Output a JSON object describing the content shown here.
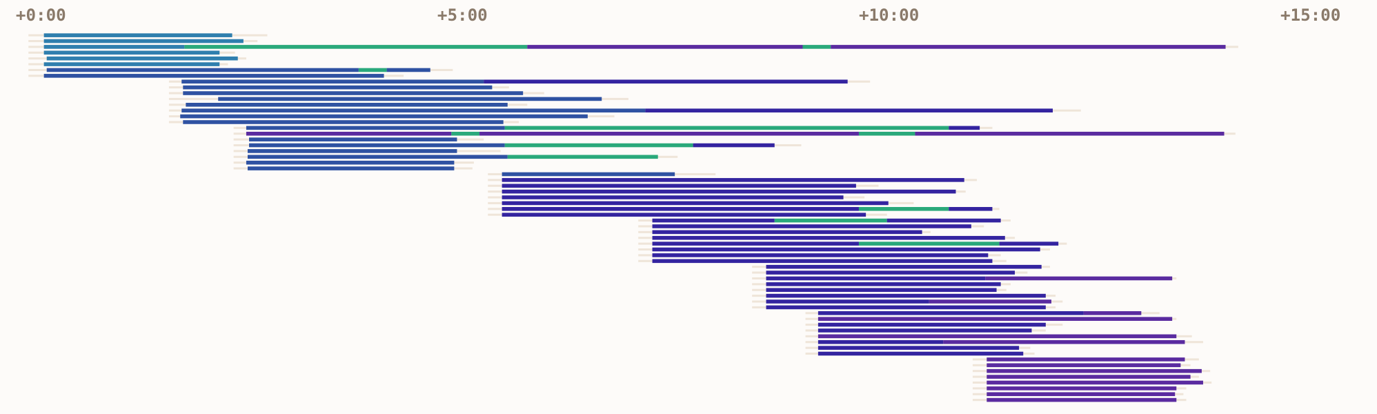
{
  "chart_data": {
    "type": "timeline",
    "xlim": [
      -11.25,
      968.75
    ],
    "xticks": [
      {
        "value": 0,
        "label": "+0:00"
      },
      {
        "value": 300,
        "label": "+5:00"
      },
      {
        "value": 600,
        "label": "+10:00"
      },
      {
        "value": 900,
        "label": "+15:00"
      }
    ],
    "colors": [
      "#2f52a2",
      "#2aa97b",
      "#5a2ba0",
      "#3424a0",
      "#2f7fae"
    ],
    "wait_color": "#efe5d9",
    "rows": [
      {
        "queue": 9,
        "done": 179,
        "segments": [
          [
            20,
            154,
            4
          ]
        ]
      },
      {
        "queue": 9,
        "done": 172,
        "segments": [
          [
            20,
            162,
            4
          ]
        ]
      },
      {
        "queue": 9,
        "done": 870,
        "segments": [
          [
            20,
            120,
            4
          ],
          [
            120,
            364,
            1
          ],
          [
            364,
            560,
            2
          ],
          [
            560,
            580,
            1
          ],
          [
            580,
            861,
            2
          ]
        ]
      },
      {
        "queue": 9,
        "done": 156,
        "segments": [
          [
            20,
            145,
            4
          ]
        ]
      },
      {
        "queue": 9,
        "done": 164,
        "segments": [
          [
            22,
            158,
            4
          ]
        ]
      },
      {
        "queue": 9,
        "done": 151,
        "segments": [
          [
            20,
            145,
            4
          ]
        ]
      },
      {
        "queue": 9,
        "done": 311,
        "segments": [
          [
            22,
            244,
            0
          ],
          [
            244,
            264,
            1
          ],
          [
            264,
            295,
            0
          ]
        ]
      },
      {
        "queue": 9,
        "done": 276,
        "segments": [
          [
            20,
            262,
            0
          ]
        ]
      },
      {
        "queue": 109,
        "done": 608,
        "segments": [
          [
            118,
            333,
            0
          ],
          [
            333,
            592,
            3
          ]
        ]
      },
      {
        "queue": 109,
        "done": 351,
        "segments": [
          [
            119,
            339,
            0
          ]
        ]
      },
      {
        "queue": 109,
        "done": 376,
        "segments": [
          [
            119,
            361,
            0
          ]
        ]
      },
      {
        "queue": 109,
        "done": 436,
        "segments": [
          [
            144,
            417,
            0
          ]
        ]
      },
      {
        "queue": 109,
        "done": 364,
        "segments": [
          [
            121,
            350,
            0
          ]
        ]
      },
      {
        "queue": 109,
        "done": 758,
        "segments": [
          [
            118,
            448,
            0
          ],
          [
            448,
            738,
            3
          ]
        ]
      },
      {
        "queue": 109,
        "done": 426,
        "segments": [
          [
            117,
            407,
            0
          ]
        ]
      },
      {
        "queue": 109,
        "done": 358,
        "segments": [
          [
            119,
            347,
            0
          ]
        ]
      },
      {
        "queue": 155,
        "done": 695,
        "segments": [
          [
            164,
            348,
            0
          ],
          [
            348,
            664,
            1
          ],
          [
            664,
            686,
            3
          ]
        ]
      },
      {
        "queue": 155,
        "done": 868,
        "segments": [
          [
            164,
            310,
            2
          ],
          [
            310,
            330,
            1
          ],
          [
            330,
            600,
            2
          ],
          [
            600,
            640,
            1
          ],
          [
            640,
            860,
            2
          ]
        ]
      },
      {
        "queue": 155,
        "done": 333,
        "segments": [
          [
            166,
            314,
            0
          ]
        ]
      },
      {
        "queue": 155,
        "done": 559,
        "segments": [
          [
            166,
            348,
            0
          ],
          [
            348,
            482,
            1
          ],
          [
            482,
            540,
            3
          ]
        ]
      },
      {
        "queue": 155,
        "done": 345,
        "segments": [
          [
            165,
            314,
            0
          ]
        ]
      },
      {
        "queue": 155,
        "done": 471,
        "segments": [
          [
            165,
            350,
            0
          ],
          [
            350,
            457,
            1
          ]
        ]
      },
      {
        "queue": 155,
        "done": 326,
        "segments": [
          [
            164,
            312,
            0
          ]
        ]
      },
      {
        "queue": 155,
        "done": 325,
        "segments": [
          [
            165,
            312,
            0
          ]
        ]
      },
      {
        "queue": 336,
        "done": 498,
        "segments": [
          [
            346,
            469,
            0
          ]
        ]
      },
      {
        "queue": 336,
        "done": 684,
        "segments": [
          [
            346,
            675,
            3
          ]
        ]
      },
      {
        "queue": 336,
        "done": 614,
        "segments": [
          [
            346,
            598,
            3
          ]
        ]
      },
      {
        "queue": 336,
        "done": 676,
        "segments": [
          [
            346,
            669,
            3
          ]
        ]
      },
      {
        "queue": 336,
        "done": 604,
        "segments": [
          [
            346,
            589,
            3
          ]
        ]
      },
      {
        "queue": 336,
        "done": 639,
        "segments": [
          [
            346,
            621,
            3
          ]
        ]
      },
      {
        "queue": 336,
        "done": 700,
        "segments": [
          [
            346,
            600,
            3
          ],
          [
            600,
            664,
            1
          ],
          [
            664,
            695,
            3
          ]
        ]
      },
      {
        "queue": 336,
        "done": 620,
        "segments": [
          [
            346,
            605,
            3
          ]
        ]
      },
      {
        "queue": 443,
        "done": 708,
        "segments": [
          [
            453,
            540,
            3
          ],
          [
            540,
            620,
            1
          ],
          [
            620,
            701,
            3
          ]
        ]
      },
      {
        "queue": 443,
        "done": 689,
        "segments": [
          [
            453,
            680,
            3
          ]
        ]
      },
      {
        "queue": 443,
        "done": 651,
        "segments": [
          [
            453,
            645,
            3
          ]
        ]
      },
      {
        "queue": 443,
        "done": 711,
        "segments": [
          [
            453,
            704,
            3
          ]
        ]
      },
      {
        "queue": 443,
        "done": 748,
        "segments": [
          [
            453,
            600,
            3
          ],
          [
            600,
            700,
            1
          ],
          [
            700,
            742,
            3
          ]
        ]
      },
      {
        "queue": 443,
        "done": 736,
        "segments": [
          [
            453,
            729,
            3
          ]
        ]
      },
      {
        "queue": 443,
        "done": 701,
        "segments": [
          [
            453,
            692,
            3
          ]
        ]
      },
      {
        "queue": 443,
        "done": 705,
        "segments": [
          [
            453,
            695,
            3
          ]
        ]
      },
      {
        "queue": 524,
        "done": 736,
        "segments": [
          [
            534,
            730,
            3
          ]
        ]
      },
      {
        "queue": 524,
        "done": 720,
        "segments": [
          [
            534,
            711,
            3
          ]
        ]
      },
      {
        "queue": 524,
        "done": 826,
        "segments": [
          [
            534,
            690,
            3
          ],
          [
            690,
            823,
            2
          ]
        ]
      },
      {
        "queue": 524,
        "done": 708,
        "segments": [
          [
            534,
            701,
            3
          ]
        ]
      },
      {
        "queue": 524,
        "done": 705,
        "segments": [
          [
            534,
            698,
            3
          ]
        ]
      },
      {
        "queue": 524,
        "done": 740,
        "segments": [
          [
            534,
            733,
            3
          ]
        ]
      },
      {
        "queue": 524,
        "done": 745,
        "segments": [
          [
            534,
            650,
            3
          ],
          [
            650,
            737,
            2
          ]
        ]
      },
      {
        "queue": 524,
        "done": 740,
        "segments": [
          [
            534,
            733,
            3
          ]
        ]
      },
      {
        "queue": 562,
        "done": 814,
        "segments": [
          [
            571,
            760,
            3
          ],
          [
            760,
            801,
            2
          ]
        ]
      },
      {
        "queue": 562,
        "done": 826,
        "segments": [
          [
            571,
            823,
            2
          ]
        ]
      },
      {
        "queue": 562,
        "done": 745,
        "segments": [
          [
            571,
            733,
            3
          ]
        ]
      },
      {
        "queue": 562,
        "done": 733,
        "segments": [
          [
            571,
            723,
            3
          ]
        ]
      },
      {
        "queue": 562,
        "done": 837,
        "segments": [
          [
            571,
            826,
            2
          ]
        ]
      },
      {
        "queue": 562,
        "done": 845,
        "segments": [
          [
            571,
            660,
            3
          ],
          [
            660,
            832,
            2
          ]
        ]
      },
      {
        "queue": 562,
        "done": 722,
        "segments": [
          [
            571,
            714,
            3
          ]
        ]
      },
      {
        "queue": 562,
        "done": 725,
        "segments": [
          [
            571,
            717,
            3
          ]
        ]
      },
      {
        "queue": 681,
        "done": 842,
        "segments": [
          [
            691,
            832,
            2
          ]
        ]
      },
      {
        "queue": 681,
        "done": 836,
        "segments": [
          [
            691,
            829,
            2
          ]
        ]
      },
      {
        "queue": 681,
        "done": 850,
        "segments": [
          [
            691,
            844,
            2
          ]
        ]
      },
      {
        "queue": 681,
        "done": 842,
        "segments": [
          [
            691,
            836,
            2
          ]
        ]
      },
      {
        "queue": 681,
        "done": 851,
        "segments": [
          [
            691,
            845,
            2
          ]
        ]
      },
      {
        "queue": 681,
        "done": 833,
        "segments": [
          [
            691,
            826,
            2
          ]
        ]
      },
      {
        "queue": 681,
        "done": 831,
        "segments": [
          [
            691,
            825,
            2
          ]
        ]
      },
      {
        "queue": 681,
        "done": 833,
        "segments": [
          [
            691,
            826,
            2
          ]
        ]
      }
    ]
  }
}
